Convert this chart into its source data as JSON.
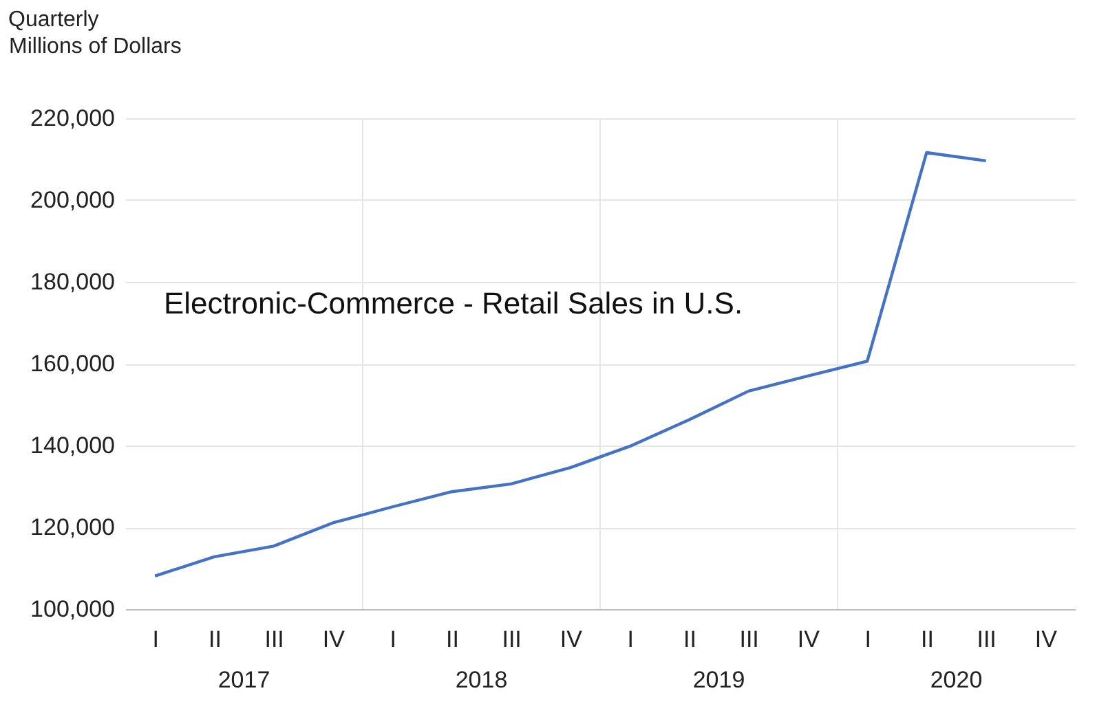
{
  "chart_data": {
    "type": "line",
    "title": "Electronic-Commerce - Retail Sales in U.S.",
    "subtitle": "Quarterly",
    "ylabel": "Millions of Dollars",
    "categories": [
      "I",
      "II",
      "III",
      "IV",
      "I",
      "II",
      "III",
      "IV",
      "I",
      "II",
      "III",
      "IV",
      "I",
      "II",
      "III",
      "IV"
    ],
    "series": [
      {
        "color": "#4472c4",
        "values": [
          108100,
          112800,
          115400,
          121100,
          125000,
          128700,
          130600,
          134600,
          139800,
          146300,
          153300,
          157000,
          160600,
          211600,
          209600,
          null
        ]
      }
    ],
    "annotations": [
      "2017",
      "2018",
      "2019",
      "2020"
    ],
    "ylim": [
      100000,
      220000
    ],
    "yticks": [
      {
        "value": 100000,
        "label": "100,000"
      },
      {
        "value": 120000,
        "label": "120,000"
      },
      {
        "value": 140000,
        "label": "140,000"
      },
      {
        "value": 160000,
        "label": "160,000"
      },
      {
        "value": 180000,
        "label": "180,000"
      },
      {
        "value": 200000,
        "label": "200,000"
      },
      {
        "value": 220000,
        "label": "220,000"
      }
    ],
    "grid": true,
    "marker": "none",
    "line_style": "solid"
  }
}
